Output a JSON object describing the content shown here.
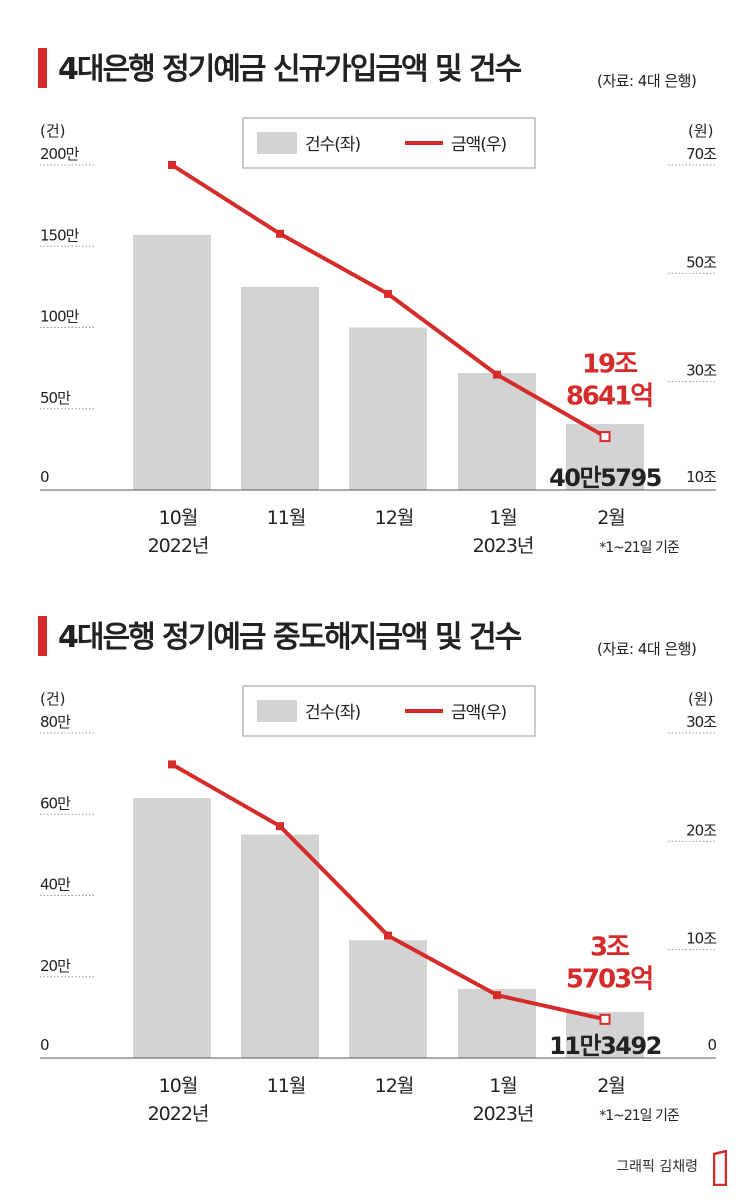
{
  "chart_data": [
    {
      "type": "bar",
      "title": "4대은행 정기예금 신규가입금액 및 건수",
      "source": "(자료: 4대 은행)",
      "left_unit": "(건)",
      "right_unit": "(원)",
      "legend": {
        "bar": "건수(좌)",
        "line": "금액(우)"
      },
      "categories": [
        "10월",
        "11월",
        "12월",
        "1월",
        "2월"
      ],
      "category_sublabels": [
        "2022년",
        "",
        "",
        "2023년",
        "*1~21일 기준"
      ],
      "series": [
        {
          "name": "건수(좌)",
          "axis": "left",
          "values": [
            1570000,
            1250000,
            1000000,
            720000,
            405795
          ]
        },
        {
          "name": "금액(우)",
          "axis": "right",
          "values": [
            70.0,
            57.3,
            46.2,
            31.3,
            19.8641
          ]
        }
      ],
      "left_axis": {
        "ylim": [
          0,
          2000000
        ],
        "ticks": [
          0,
          500000,
          1000000,
          1500000,
          2000000
        ],
        "tick_labels": [
          "0",
          "50만",
          "100만",
          "150만",
          "200만"
        ]
      },
      "right_axis": {
        "ylim": [
          10,
          70
        ],
        "ticks": [
          10,
          30,
          50,
          70
        ],
        "tick_labels": [
          "10조",
          "30조",
          "50조",
          "70조"
        ]
      },
      "annotations": {
        "bar_last": "40만5795",
        "line_last_1": "19조",
        "line_last_2": "8641억"
      }
    },
    {
      "type": "bar",
      "title": "4대은행 정기예금 중도해지금액 및 건수",
      "source": "(자료: 4대 은행)",
      "left_unit": "(건)",
      "right_unit": "(원)",
      "legend": {
        "bar": "건수(좌)",
        "line": "금액(우)"
      },
      "categories": [
        "10월",
        "11월",
        "12월",
        "1월",
        "2월"
      ],
      "category_sublabels": [
        "2022년",
        "",
        "",
        "2023년",
        "*1~21일 기준"
      ],
      "series": [
        {
          "name": "건수(좌)",
          "axis": "left",
          "values": [
            640000,
            550000,
            290000,
            170000,
            113492
          ]
        },
        {
          "name": "금액(우)",
          "axis": "right",
          "values": [
            27.1,
            21.4,
            11.3,
            5.8,
            3.5703
          ]
        }
      ],
      "left_axis": {
        "ylim": [
          0,
          800000
        ],
        "ticks": [
          0,
          200000,
          400000,
          600000,
          800000
        ],
        "tick_labels": [
          "0",
          "20만",
          "40만",
          "60만",
          "80만"
        ]
      },
      "right_axis": {
        "ylim": [
          0,
          30
        ],
        "ticks": [
          0,
          10,
          20,
          30
        ],
        "tick_labels": [
          "0",
          "10조",
          "20조",
          "30조"
        ]
      },
      "annotations": {
        "bar_last": "11만3492",
        "line_last_1": "3조",
        "line_last_2": "5703억"
      }
    }
  ],
  "footer": {
    "credit": "그래픽 김채령"
  },
  "colors": {
    "accent": "#d52b2b",
    "bar": "#d3d3d3",
    "text": "#222222"
  }
}
